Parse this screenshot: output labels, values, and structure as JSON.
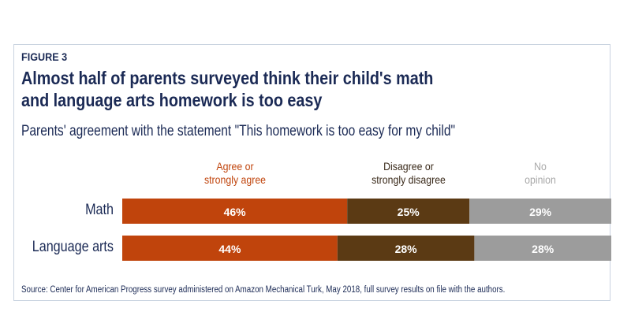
{
  "figure_label": "FIGURE 3",
  "title_lines": [
    "Almost half of parents surveyed think their child's math",
    "and language arts homework is too easy"
  ],
  "subtitle": "Parents' agreement with the statement \"This homework is too easy for my child\"",
  "source": "Source: Center for American Progress survey administered on Amazon Mechanical Turk, May 2018, full survey results on file with the authors.",
  "chart_data": {
    "type": "bar",
    "orientation": "horizontal-stacked-100",
    "categories": [
      "Math",
      "Language arts"
    ],
    "series": [
      {
        "name": "Agree or strongly agree",
        "legend_lines": [
          "Agree or",
          "strongly agree"
        ],
        "values": [
          46,
          44
        ],
        "labels": [
          "46%",
          "44%"
        ],
        "color": "#c0440c",
        "legend_color": "#c0440c"
      },
      {
        "name": "Disagree or strongly disagree",
        "legend_lines": [
          "Disagree or",
          "strongly disagree"
        ],
        "values": [
          25,
          28
        ],
        "labels": [
          "25%",
          "28%"
        ],
        "color": "#5b3a14",
        "legend_color": "#3a2a1a"
      },
      {
        "name": "No opinion",
        "legend_lines": [
          "No",
          "opinion"
        ],
        "values": [
          29,
          28
        ],
        "labels": [
          "29%",
          "28%"
        ],
        "color": "#9c9c9c",
        "legend_color": "#a8a8a8"
      }
    ],
    "xlim": [
      0,
      100
    ],
    "legend_placement": "top"
  }
}
